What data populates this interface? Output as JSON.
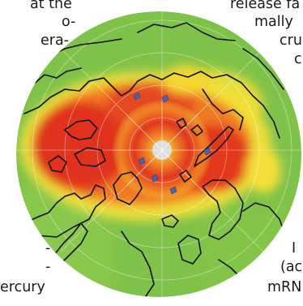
{
  "text_fragments": {
    "left": [
      "at the",
      "o-",
      "era-",
      "-",
      "-",
      "ercury"
    ],
    "right": [
      "release fa",
      "mally",
      "cru",
      "c",
      "I",
      "(ac",
      "mRN"
    ]
  },
  "figure": {
    "type": "polar-map",
    "colors": {
      "background_field": "#7fc24a",
      "high": "#e0321e",
      "mid": "#f07a22",
      "low": "#f5d733",
      "coast": "#111111",
      "station_marker": "#5060a8"
    }
  }
}
